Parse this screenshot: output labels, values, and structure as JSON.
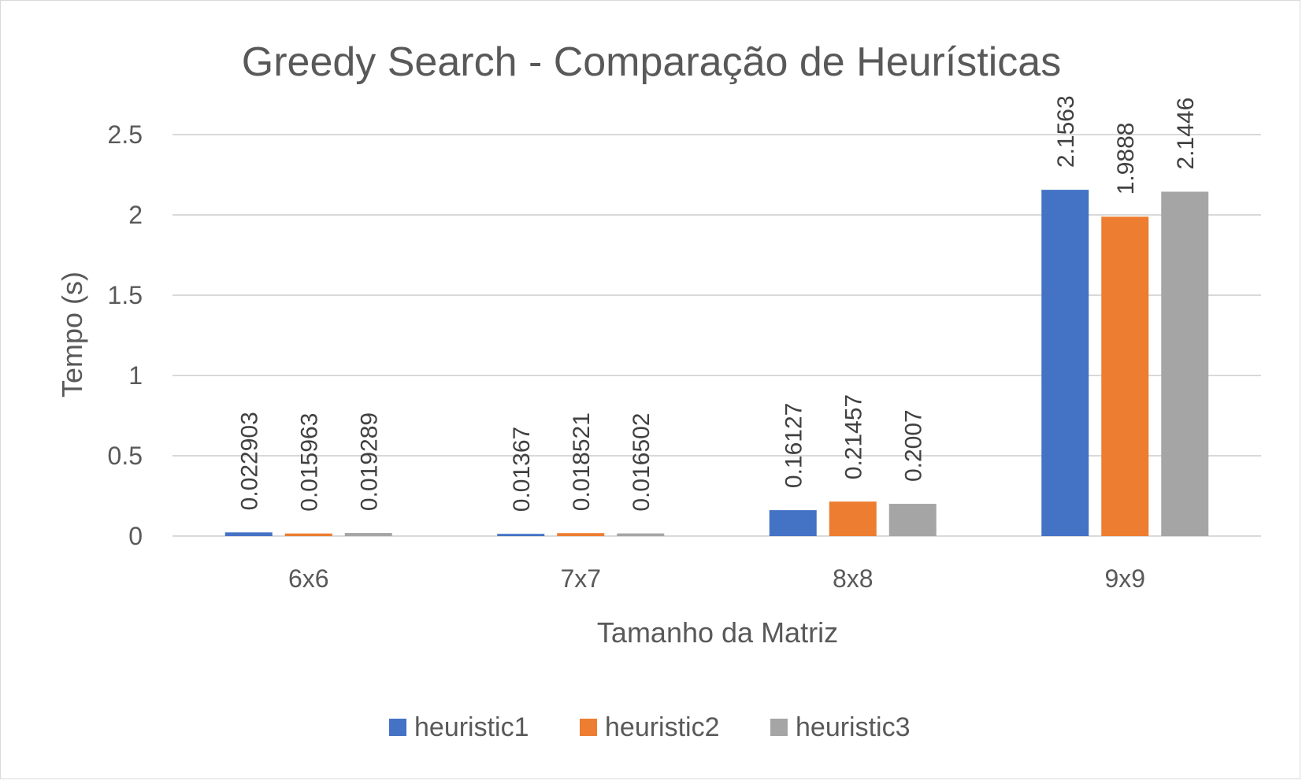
{
  "chart_data": {
    "type": "bar",
    "title": "Greedy Search - Comparação de Heurísticas",
    "xlabel": "Tamanho da Matriz",
    "ylabel": "Tempo (s)",
    "categories": [
      "6x6",
      "7x7",
      "8x8",
      "9x9"
    ],
    "ylim": [
      0,
      2.5
    ],
    "yticks": [
      0,
      0.5,
      1,
      1.5,
      2,
      2.5
    ],
    "ytick_labels": [
      "0",
      "0.5",
      "1",
      "1.5",
      "2",
      "2.5"
    ],
    "grid": true,
    "legend_position": "bottom",
    "series": [
      {
        "name": "heuristic1",
        "color": "#4472C4",
        "values": [
          0.022903,
          0.01367,
          0.16127,
          2.1563
        ],
        "labels": [
          "0.022903",
          "0.01367",
          "0.16127",
          "2.1563"
        ]
      },
      {
        "name": "heuristic2",
        "color": "#ED7D31",
        "values": [
          0.015963,
          0.018521,
          0.21457,
          1.9888
        ],
        "labels": [
          "0.015963",
          "0.018521",
          "0.21457",
          "1.9888"
        ]
      },
      {
        "name": "heuristic3",
        "color": "#A5A5A5",
        "values": [
          0.019289,
          0.016502,
          0.2007,
          2.1446
        ],
        "labels": [
          "0.019289",
          "0.016502",
          "0.2007",
          "2.1446"
        ]
      }
    ]
  }
}
